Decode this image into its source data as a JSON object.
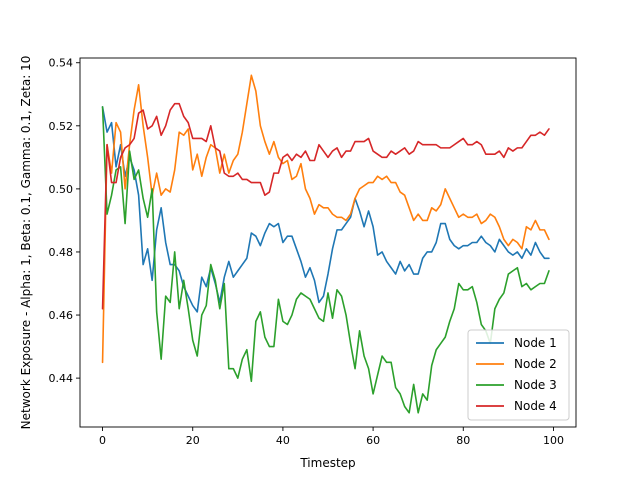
{
  "chart_data": {
    "type": "line",
    "title": "",
    "xlabel": "Timestep",
    "ylabel": "Network Exposure - Alpha: 1, Beta: 0.1, Gamma: 0.1, Zeta: 10",
    "xlim": [
      -5,
      105
    ],
    "ylim": [
      0.4245,
      0.5415
    ],
    "xticks": [
      0,
      20,
      40,
      60,
      80,
      100
    ],
    "yticks": [
      0.44,
      0.46,
      0.48,
      0.5,
      0.52,
      0.54
    ],
    "grid": false,
    "legend_position": "lower-right",
    "x": [
      0,
      1,
      2,
      3,
      4,
      5,
      6,
      7,
      8,
      9,
      10,
      11,
      12,
      13,
      14,
      15,
      16,
      17,
      18,
      19,
      20,
      21,
      22,
      23,
      24,
      25,
      26,
      27,
      28,
      29,
      30,
      31,
      32,
      33,
      34,
      35,
      36,
      37,
      38,
      39,
      40,
      41,
      42,
      43,
      44,
      45,
      46,
      47,
      48,
      49,
      50,
      51,
      52,
      53,
      54,
      55,
      56,
      57,
      58,
      59,
      60,
      61,
      62,
      63,
      64,
      65,
      66,
      67,
      68,
      69,
      70,
      71,
      72,
      73,
      74,
      75,
      76,
      77,
      78,
      79,
      80,
      81,
      82,
      83,
      84,
      85,
      86,
      87,
      88,
      89,
      90,
      91,
      92,
      93,
      94,
      95,
      96,
      97,
      98,
      99
    ],
    "series": [
      {
        "name": "Node 1",
        "color": "#1f77b4",
        "values": [
          0.526,
          0.518,
          0.521,
          0.507,
          0.514,
          0.504,
          0.51,
          0.506,
          0.498,
          0.476,
          0.481,
          0.471,
          0.487,
          0.494,
          0.483,
          0.476,
          0.476,
          0.474,
          0.469,
          0.466,
          0.463,
          0.461,
          0.472,
          0.469,
          0.475,
          0.47,
          0.464,
          0.472,
          0.477,
          0.472,
          0.474,
          0.476,
          0.478,
          0.486,
          0.485,
          0.482,
          0.486,
          0.489,
          0.488,
          0.489,
          0.483,
          0.485,
          0.485,
          0.481,
          0.477,
          0.472,
          0.475,
          0.471,
          0.464,
          0.466,
          0.473,
          0.481,
          0.487,
          0.487,
          0.489,
          0.491,
          0.497,
          0.493,
          0.488,
          0.493,
          0.488,
          0.479,
          0.48,
          0.477,
          0.475,
          0.473,
          0.477,
          0.474,
          0.476,
          0.473,
          0.473,
          0.478,
          0.48,
          0.48,
          0.483,
          0.489,
          0.489,
          0.484,
          0.482,
          0.481,
          0.482,
          0.482,
          0.483,
          0.483,
          0.485,
          0.483,
          0.482,
          0.48,
          0.484,
          0.482,
          0.48,
          0.479,
          0.48,
          0.478,
          0.481,
          0.479,
          0.483,
          0.48,
          0.478,
          0.478
        ]
      },
      {
        "name": "Node 2",
        "color": "#ff7f0e",
        "values": [
          0.445,
          0.514,
          0.505,
          0.521,
          0.518,
          0.5,
          0.514,
          0.525,
          0.533,
          0.52,
          0.51,
          0.498,
          0.505,
          0.498,
          0.5,
          0.499,
          0.506,
          0.518,
          0.517,
          0.519,
          0.506,
          0.511,
          0.504,
          0.51,
          0.514,
          0.513,
          0.505,
          0.511,
          0.505,
          0.509,
          0.511,
          0.518,
          0.527,
          0.536,
          0.531,
          0.52,
          0.515,
          0.511,
          0.515,
          0.51,
          0.508,
          0.509,
          0.503,
          0.504,
          0.508,
          0.5,
          0.497,
          0.492,
          0.495,
          0.494,
          0.494,
          0.492,
          0.491,
          0.491,
          0.49,
          0.492,
          0.497,
          0.5,
          0.501,
          0.502,
          0.502,
          0.504,
          0.503,
          0.504,
          0.502,
          0.502,
          0.499,
          0.498,
          0.494,
          0.49,
          0.492,
          0.49,
          0.49,
          0.494,
          0.493,
          0.495,
          0.5,
          0.497,
          0.494,
          0.491,
          0.492,
          0.491,
          0.491,
          0.492,
          0.489,
          0.49,
          0.492,
          0.491,
          0.488,
          0.484,
          0.482,
          0.484,
          0.483,
          0.481,
          0.488,
          0.487,
          0.49,
          0.487,
          0.487,
          0.484
        ]
      },
      {
        "name": "Node 3",
        "color": "#2ca02c",
        "values": [
          0.526,
          0.492,
          0.498,
          0.506,
          0.507,
          0.489,
          0.512,
          0.503,
          0.506,
          0.497,
          0.491,
          0.5,
          0.461,
          0.446,
          0.466,
          0.464,
          0.48,
          0.462,
          0.471,
          0.462,
          0.452,
          0.447,
          0.46,
          0.463,
          0.476,
          0.471,
          0.462,
          0.47,
          0.443,
          0.443,
          0.44,
          0.446,
          0.449,
          0.439,
          0.458,
          0.461,
          0.453,
          0.45,
          0.45,
          0.465,
          0.458,
          0.457,
          0.46,
          0.465,
          0.467,
          0.466,
          0.465,
          0.462,
          0.459,
          0.458,
          0.467,
          0.459,
          0.468,
          0.466,
          0.46,
          0.451,
          0.443,
          0.455,
          0.447,
          0.443,
          0.435,
          0.441,
          0.447,
          0.445,
          0.445,
          0.437,
          0.435,
          0.431,
          0.429,
          0.438,
          0.429,
          0.435,
          0.433,
          0.444,
          0.449,
          0.451,
          0.453,
          0.458,
          0.462,
          0.47,
          0.468,
          0.468,
          0.469,
          0.464,
          0.457,
          0.455,
          0.451,
          0.462,
          0.465,
          0.467,
          0.473,
          0.474,
          0.475,
          0.469,
          0.47,
          0.468,
          0.469,
          0.47,
          0.47,
          0.474
        ]
      },
      {
        "name": "Node 4",
        "color": "#d62728",
        "values": [
          0.462,
          0.514,
          0.502,
          0.502,
          0.51,
          0.513,
          0.514,
          0.516,
          0.524,
          0.525,
          0.519,
          0.52,
          0.523,
          0.517,
          0.52,
          0.525,
          0.527,
          0.527,
          0.523,
          0.521,
          0.516,
          0.516,
          0.516,
          0.515,
          0.52,
          0.513,
          0.512,
          0.505,
          0.504,
          0.504,
          0.505,
          0.503,
          0.503,
          0.502,
          0.502,
          0.502,
          0.498,
          0.499,
          0.505,
          0.505,
          0.51,
          0.511,
          0.509,
          0.511,
          0.51,
          0.512,
          0.509,
          0.509,
          0.514,
          0.512,
          0.51,
          0.512,
          0.513,
          0.51,
          0.512,
          0.512,
          0.515,
          0.515,
          0.515,
          0.516,
          0.512,
          0.511,
          0.51,
          0.51,
          0.512,
          0.511,
          0.512,
          0.513,
          0.511,
          0.512,
          0.515,
          0.514,
          0.514,
          0.514,
          0.514,
          0.513,
          0.513,
          0.513,
          0.514,
          0.515,
          0.516,
          0.514,
          0.514,
          0.515,
          0.514,
          0.511,
          0.511,
          0.511,
          0.512,
          0.51,
          0.513,
          0.512,
          0.513,
          0.513,
          0.515,
          0.517,
          0.517,
          0.518,
          0.517,
          0.519
        ]
      }
    ]
  }
}
